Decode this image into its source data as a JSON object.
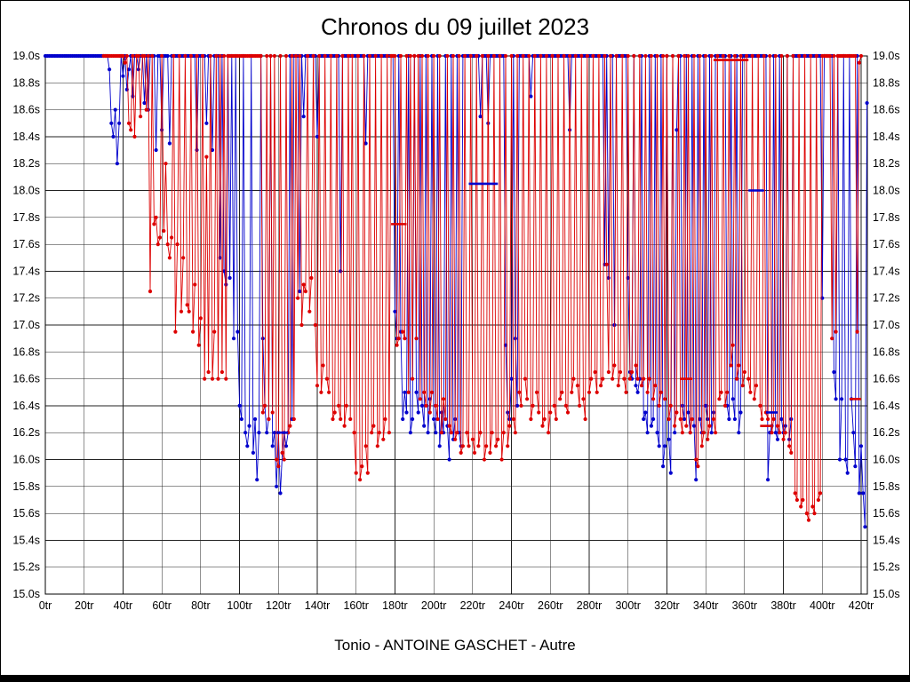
{
  "footer": {
    "caption": "Tonio - ANTOINE GASCHET - Autre"
  },
  "chart_data": {
    "type": "line",
    "title": "Chronos du 09 juillet 2023",
    "xlabel": "",
    "ylabel": "",
    "x_unit": "tr",
    "y_unit": "s",
    "xlim": [
      0,
      423
    ],
    "ylim": [
      15.0,
      19.0
    ],
    "x_tick_step": 20,
    "y_tick_step": 0.2,
    "clip_max": 19.0,
    "grid": true,
    "legend": "none",
    "x_ticks": [
      "0tr",
      "20tr",
      "40tr",
      "60tr",
      "80tr",
      "100tr",
      "120tr",
      "140tr",
      "160tr",
      "180tr",
      "200tr",
      "220tr",
      "240tr",
      "260tr",
      "280tr",
      "300tr",
      "320tr",
      "340tr",
      "360tr",
      "380tr",
      "400tr",
      "420tr"
    ],
    "y_ticks": [
      "19.0s",
      "18.8s",
      "18.6s",
      "18.4s",
      "18.2s",
      "18.0s",
      "17.8s",
      "17.6s",
      "17.4s",
      "17.2s",
      "17.0s",
      "16.8s",
      "16.6s",
      "16.4s",
      "16.2s",
      "16.0s",
      "15.8s",
      "15.6s",
      "15.4s",
      "15.2s",
      "15.0s"
    ],
    "series": [
      {
        "name": "serie-bleue",
        "color": "#0000cc",
        "x_start": 0,
        "values": [
          19,
          19,
          19,
          19,
          19,
          19,
          19,
          19,
          19,
          19,
          19,
          19,
          19,
          19,
          19,
          19,
          19,
          19,
          19,
          19,
          19,
          19,
          19,
          19,
          19,
          19,
          19,
          19,
          19,
          19,
          19,
          19,
          19,
          18.9,
          18.5,
          18.4,
          18.6,
          18.2,
          18.5,
          19,
          18.85,
          19,
          18.75,
          18.9,
          19,
          18.7,
          19,
          19,
          18.9,
          19,
          19,
          18.65,
          19,
          18.6,
          19,
          19,
          19,
          18.3,
          19,
          19,
          18.45,
          19,
          19,
          19,
          18.35,
          19,
          19,
          19,
          19,
          19,
          19,
          19,
          19,
          19,
          19,
          19,
          19,
          19,
          18.3,
          19,
          19,
          19,
          19,
          18.5,
          19,
          19,
          18.3,
          19,
          19,
          19,
          17.5,
          19,
          17.4,
          17.3,
          19,
          17.35,
          19,
          16.9,
          19,
          16.95,
          16.4,
          16.3,
          19,
          16.2,
          16.1,
          16.25,
          19,
          16.05,
          16.3,
          15.85,
          16.2,
          19,
          16.9,
          16.4,
          16.2,
          16.3,
          19,
          16.1,
          16.2,
          15.8,
          16.2,
          15.75,
          16.05,
          16.2,
          16.1,
          16.2,
          19,
          16.3,
          19,
          19,
          19,
          17.25,
          19,
          18.55,
          19,
          19,
          19,
          19,
          19,
          19,
          18.4,
          19,
          19,
          19,
          19,
          19,
          19,
          19,
          19,
          19,
          19,
          19,
          17.4,
          19,
          19,
          19,
          19,
          19,
          19,
          19,
          19,
          19,
          19,
          19,
          19,
          18.35,
          19,
          19,
          19,
          19,
          19,
          19,
          19,
          19,
          19,
          19,
          19,
          19,
          19,
          19,
          17.1,
          16.9,
          19,
          16.95,
          16.3,
          16.5,
          16.35,
          19,
          16.2,
          16.3,
          19,
          16.5,
          16.35,
          19,
          16.4,
          16.25,
          19,
          16.2,
          16.45,
          19,
          16.3,
          16.2,
          19,
          16.1,
          16.35,
          16.2,
          19,
          16.25,
          16.0,
          19,
          16.15,
          16.3,
          19,
          16.2,
          16.1,
          19,
          19,
          19,
          19,
          19,
          19,
          19,
          19,
          19,
          18.55,
          19,
          19,
          19,
          18.5,
          19,
          19,
          19,
          19,
          19,
          19,
          19,
          19,
          16.85,
          16.35,
          16.3,
          16.6,
          19,
          16.9,
          16.4,
          19,
          19,
          19,
          19,
          19,
          19,
          18.7,
          19,
          19,
          19,
          19,
          19,
          19,
          19,
          19,
          19,
          19,
          19,
          19,
          19,
          19,
          19,
          19,
          19,
          19,
          19,
          18.45,
          19,
          19,
          19,
          19,
          19,
          19,
          19,
          19,
          19,
          19,
          19,
          19,
          19,
          19,
          19,
          19,
          19,
          17.45,
          19,
          17.35,
          19,
          19,
          17.0,
          19,
          19,
          19,
          19,
          19,
          19,
          17.35,
          16.65,
          16.6,
          19,
          16.55,
          16.5,
          16.6,
          19,
          16.3,
          16.35,
          16.2,
          19,
          16.25,
          16.3,
          19,
          16.2,
          16.1,
          19,
          15.95,
          16.1,
          19,
          16.15,
          15.9,
          19,
          16.2,
          18.45,
          19,
          19,
          16.4,
          16.3,
          19,
          16.35,
          16.2,
          19,
          16.25,
          15.85,
          19,
          16.3,
          16.2,
          19,
          16.4,
          16.3,
          19,
          16.2,
          16.35,
          19,
          19,
          19,
          19,
          19,
          19,
          16.4,
          16.3,
          19,
          16.45,
          16.3,
          19,
          16.2,
          16.35,
          19,
          19,
          19,
          19,
          19,
          19,
          19,
          19,
          19,
          19,
          19,
          19,
          19,
          15.85,
          16.2,
          16.25,
          19,
          16.2,
          16.15,
          19,
          16.3,
          16.2,
          16.25,
          19,
          16.15,
          16.3,
          19,
          19,
          19,
          19,
          19,
          19,
          19,
          19,
          19,
          19,
          19,
          19,
          19,
          19,
          19,
          17.2,
          19,
          19,
          19,
          19,
          19,
          16.65,
          16.45,
          19,
          16.0,
          16.45,
          19,
          16.0,
          15.9,
          19,
          16.45,
          16.2,
          15.95,
          19,
          15.75,
          16.1,
          15.75,
          15.5,
          18.65
        ]
      },
      {
        "name": "serie-rouge",
        "color": "#dd0000",
        "x_start": 30,
        "values": [
          19,
          19,
          19,
          19,
          19,
          19,
          19,
          19,
          19,
          19,
          19,
          18.95,
          19,
          18.5,
          18.45,
          19,
          18.4,
          19,
          19,
          18.55,
          19,
          19,
          18.6,
          19,
          17.25,
          19,
          17.75,
          17.8,
          17.6,
          17.65,
          19,
          17.7,
          18.2,
          17.6,
          17.5,
          17.65,
          19,
          16.95,
          17.6,
          19,
          17.1,
          17.5,
          19,
          17.15,
          17.1,
          19,
          16.95,
          17.3,
          19,
          16.85,
          17.05,
          19,
          16.6,
          18.25,
          16.65,
          19,
          16.6,
          16.95,
          19,
          16.6,
          19,
          16.65,
          19,
          16.6,
          19,
          19,
          19,
          19,
          19,
          19,
          19,
          19,
          19,
          19,
          19,
          19,
          19,
          19,
          19,
          19,
          19,
          19,
          16.35,
          16.4,
          19,
          16.3,
          19,
          16.35,
          19,
          16.0,
          15.95,
          19,
          16.05,
          16.0,
          19,
          16.2,
          16.25,
          19,
          16.3,
          19,
          17.2,
          19,
          17.0,
          17.3,
          17.25,
          19,
          17.1,
          17.35,
          19,
          17.0,
          16.55,
          19,
          16.5,
          16.7,
          19,
          16.6,
          16.5,
          19,
          16.3,
          16.35,
          19,
          16.4,
          16.3,
          19,
          16.25,
          16.4,
          19,
          16.3,
          19,
          16.2,
          15.9,
          19,
          15.85,
          15.95,
          19,
          16.1,
          15.9,
          19,
          16.2,
          16.25,
          19,
          16.1,
          16.2,
          19,
          16.15,
          16.3,
          19,
          16.2,
          19,
          19,
          19,
          16.85,
          16.9,
          19,
          16.95,
          16.9,
          19,
          16.5,
          19,
          16.6,
          19,
          16.9,
          19,
          16.45,
          19,
          16.5,
          16.4,
          19,
          16.35,
          16.5,
          19,
          16.4,
          16.3,
          19,
          16.2,
          16.45,
          16.3,
          19,
          16.25,
          16.2,
          19,
          16.15,
          16.2,
          19,
          16.05,
          16.1,
          19,
          16.2,
          16.1,
          19,
          16.15,
          16.05,
          19,
          16.1,
          16.2,
          19,
          16.0,
          16.1,
          19,
          16.05,
          16.2,
          19,
          16.1,
          16.15,
          19,
          16.0,
          16.2,
          19,
          16.1,
          16.25,
          19,
          16.3,
          16.2,
          19,
          16.5,
          16.4,
          19,
          16.6,
          16.45,
          19,
          16.3,
          16.4,
          19,
          16.5,
          16.35,
          19,
          16.25,
          16.3,
          19,
          16.2,
          16.35,
          19,
          16.4,
          16.3,
          19,
          16.45,
          16.5,
          19,
          16.4,
          16.35,
          19,
          16.5,
          16.6,
          19,
          16.55,
          16.4,
          19,
          16.45,
          16.3,
          19,
          16.5,
          16.6,
          19,
          16.65,
          16.5,
          19,
          16.55,
          16.6,
          19,
          17.45,
          16.65,
          19,
          16.6,
          16.7,
          19,
          16.55,
          16.65,
          19,
          16.6,
          16.5,
          19,
          16.6,
          16.65,
          19,
          16.7,
          16.6,
          19,
          16.55,
          16.6,
          19,
          16.5,
          16.6,
          19,
          16.45,
          16.55,
          19,
          16.4,
          16.5,
          19,
          16.45,
          19,
          16.3,
          16.4,
          19,
          16.25,
          16.35,
          19,
          16.3,
          16.2,
          19,
          16.25,
          19,
          16.2,
          16.3,
          19,
          16.0,
          15.95,
          19,
          16.1,
          16.2,
          19,
          16.15,
          16.25,
          19,
          16.3,
          16.2,
          19,
          16.45,
          16.5,
          19,
          16.4,
          16.5,
          19,
          16.7,
          16.85,
          19,
          16.6,
          16.7,
          19,
          16.55,
          16.65,
          19,
          16.6,
          16.5,
          19,
          16.45,
          16.55,
          19,
          16.4,
          16.3,
          19,
          16.35,
          16.3,
          19,
          16.2,
          16.3,
          19,
          16.25,
          16.2,
          19,
          16.15,
          16.2,
          19,
          16.1,
          16.05,
          19,
          15.75,
          15.7,
          19,
          15.65,
          15.7,
          19,
          15.6,
          15.55,
          19,
          15.65,
          15.6,
          19,
          15.7,
          15.75,
          19,
          19,
          19,
          19,
          19,
          16.9,
          19,
          16.95,
          19,
          19,
          19,
          19,
          19,
          19,
          19,
          19,
          19,
          19,
          16.95,
          18.95,
          19
        ]
      }
    ],
    "dashes": [
      {
        "color": "#0000cc",
        "x1": 119,
        "x2": 125,
        "y": 16.2
      },
      {
        "color": "#0000cc",
        "x1": 218,
        "x2": 233,
        "y": 18.05
      },
      {
        "color": "#0000cc",
        "x1": 362,
        "x2": 370,
        "y": 18.0
      },
      {
        "color": "#0000cc",
        "x1": 371,
        "x2": 377,
        "y": 16.35
      },
      {
        "color": "#dd0000",
        "x1": 178,
        "x2": 186,
        "y": 17.75
      },
      {
        "color": "#dd0000",
        "x1": 344,
        "x2": 362,
        "y": 18.97
      },
      {
        "color": "#dd0000",
        "x1": 327,
        "x2": 333,
        "y": 16.6
      },
      {
        "color": "#dd0000",
        "x1": 368,
        "x2": 374,
        "y": 16.25
      },
      {
        "color": "#dd0000",
        "x1": 414,
        "x2": 420,
        "y": 16.45
      }
    ]
  }
}
